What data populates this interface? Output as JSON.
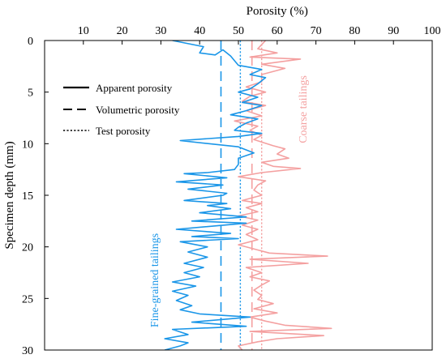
{
  "chart_data": {
    "type": "line",
    "title": "",
    "xlabel": "Porosity (%)",
    "ylabel": "Specimen depth (mm)",
    "xlim": [
      0,
      100
    ],
    "ylim": [
      0,
      30
    ],
    "x_axis_position": "top",
    "y_axis_inverted": true,
    "x_ticks": [
      10,
      20,
      30,
      40,
      50,
      60,
      70,
      80,
      90,
      100
    ],
    "y_ticks": [
      0,
      5,
      10,
      15,
      20,
      25,
      30
    ],
    "grid": false,
    "legend": {
      "placement": "upper-left",
      "entries": [
        {
          "label": "Apparent porosity",
          "style": "solid"
        },
        {
          "label": "Volumetric porosity",
          "style": "dashed"
        },
        {
          "label": "Test porosity",
          "style": "dotted"
        }
      ]
    },
    "annotations": [
      {
        "text": "Coarse tailings",
        "color": "#f4a0a0"
      },
      {
        "text": "Fine-grained tailings",
        "color": "#1a96e8"
      }
    ],
    "colors": {
      "fine": "#1a96e8",
      "coarse": "#f4a0a0"
    },
    "series": [
      {
        "group": "fine",
        "kind": "apparent",
        "points": [
          [
            33,
            0
          ],
          [
            41,
            0.6
          ],
          [
            40,
            1.2
          ],
          [
            44,
            1.4
          ],
          [
            46,
            0.9
          ],
          [
            48,
            1.5
          ],
          [
            50,
            2.4
          ],
          [
            56,
            2.8
          ],
          [
            53,
            3.3
          ],
          [
            57,
            3.6
          ],
          [
            55,
            4.2
          ],
          [
            53,
            4.7
          ],
          [
            50,
            5.0
          ],
          [
            55,
            5.5
          ],
          [
            51,
            6.0
          ],
          [
            56,
            6.3
          ],
          [
            52,
            6.8
          ],
          [
            48,
            7.2
          ],
          [
            55,
            7.6
          ],
          [
            52,
            8.0
          ],
          [
            50,
            8.4
          ],
          [
            49,
            8.7
          ],
          [
            56,
            9.0
          ],
          [
            50,
            9.3
          ],
          [
            35,
            9.7
          ],
          [
            50,
            10.3
          ],
          [
            54,
            10.9
          ],
          [
            50,
            11.4
          ],
          [
            50,
            12.0
          ],
          [
            49,
            12.5
          ],
          [
            42,
            12.8
          ],
          [
            36,
            12.9
          ],
          [
            47,
            13.3
          ],
          [
            34,
            13.7
          ],
          [
            46,
            14.0
          ],
          [
            37,
            14.4
          ],
          [
            47,
            14.8
          ],
          [
            46,
            15.0
          ],
          [
            36,
            15.5
          ],
          [
            47,
            15.8
          ],
          [
            42,
            16.0
          ],
          [
            48,
            16.3
          ],
          [
            40,
            16.7
          ],
          [
            52,
            17.1
          ],
          [
            38,
            17.5
          ],
          [
            52,
            17.7
          ],
          [
            34,
            18.3
          ],
          [
            48,
            18.7
          ],
          [
            38,
            19.0
          ],
          [
            50,
            19.2
          ],
          [
            35,
            19.5
          ],
          [
            42,
            20.0
          ],
          [
            37,
            20.5
          ],
          [
            42,
            21.0
          ],
          [
            36,
            21.6
          ],
          [
            41,
            22.0
          ],
          [
            36,
            22.5
          ],
          [
            40,
            22.9
          ],
          [
            33,
            23.4
          ],
          [
            39,
            23.8
          ],
          [
            33,
            24.3
          ],
          [
            37,
            24.7
          ],
          [
            34,
            25.2
          ],
          [
            38,
            25.7
          ],
          [
            35,
            26.1
          ],
          [
            40,
            26.5
          ],
          [
            53,
            26.8
          ],
          [
            38,
            27.3
          ],
          [
            52,
            27.7
          ],
          [
            33,
            28.0
          ],
          [
            37,
            28.5
          ],
          [
            31,
            28.9
          ],
          [
            37,
            29.3
          ],
          [
            35,
            29.6
          ],
          [
            31,
            30.0
          ]
        ]
      },
      {
        "group": "coarse",
        "kind": "apparent",
        "points": [
          [
            57,
            0
          ],
          [
            55,
            0.8
          ],
          [
            60,
            1.2
          ],
          [
            53,
            1.6
          ],
          [
            66,
            1.8
          ],
          [
            56,
            2.3
          ],
          [
            62,
            2.7
          ],
          [
            56,
            3.3
          ],
          [
            56,
            4.0
          ],
          [
            52,
            4.5
          ],
          [
            57,
            5.0
          ],
          [
            53,
            5.4
          ],
          [
            51,
            5.9
          ],
          [
            57,
            6.3
          ],
          [
            52,
            6.8
          ],
          [
            56,
            7.3
          ],
          [
            49,
            7.8
          ],
          [
            55,
            8.3
          ],
          [
            53,
            8.7
          ],
          [
            56,
            9.2
          ],
          [
            54,
            9.6
          ],
          [
            59,
            10.2
          ],
          [
            62,
            10.5
          ],
          [
            60,
            11.0
          ],
          [
            63,
            11.4
          ],
          [
            56,
            11.8
          ],
          [
            59,
            12.2
          ],
          [
            66,
            12.4
          ],
          [
            56,
            12.8
          ],
          [
            50,
            13.2
          ],
          [
            57,
            13.6
          ],
          [
            55,
            14.0
          ],
          [
            54,
            14.5
          ],
          [
            56,
            15.0
          ],
          [
            51,
            15.5
          ],
          [
            56,
            15.8
          ],
          [
            52,
            16.2
          ],
          [
            55,
            16.6
          ],
          [
            50,
            17.0
          ],
          [
            55,
            17.4
          ],
          [
            51,
            17.9
          ],
          [
            55,
            18.3
          ],
          [
            52,
            18.8
          ],
          [
            55,
            19.3
          ],
          [
            50,
            19.8
          ],
          [
            55,
            20.3
          ],
          [
            58,
            20.6
          ],
          [
            73,
            20.9
          ],
          [
            53,
            21.2
          ],
          [
            68,
            21.6
          ],
          [
            52,
            22.0
          ],
          [
            56,
            22.5
          ],
          [
            53,
            22.9
          ],
          [
            58,
            23.3
          ],
          [
            56,
            23.7
          ],
          [
            54,
            24.2
          ],
          [
            56,
            24.7
          ],
          [
            55,
            25.1
          ],
          [
            59,
            25.5
          ],
          [
            54,
            26.0
          ],
          [
            60,
            26.4
          ],
          [
            53,
            26.8
          ],
          [
            57,
            27.2
          ],
          [
            62,
            27.6
          ],
          [
            74,
            27.9
          ],
          [
            53,
            28.2
          ],
          [
            72,
            28.6
          ],
          [
            60,
            28.9
          ],
          [
            55,
            29.2
          ],
          [
            50,
            29.6
          ],
          [
            51,
            30.0
          ]
        ]
      },
      {
        "group": "fine",
        "kind": "volumetric",
        "value": 45.5
      },
      {
        "group": "coarse",
        "kind": "volumetric",
        "value": 53.5
      },
      {
        "group": "fine",
        "kind": "test",
        "value": 50.5
      },
      {
        "group": "coarse",
        "kind": "test",
        "value": 56.0
      }
    ]
  }
}
